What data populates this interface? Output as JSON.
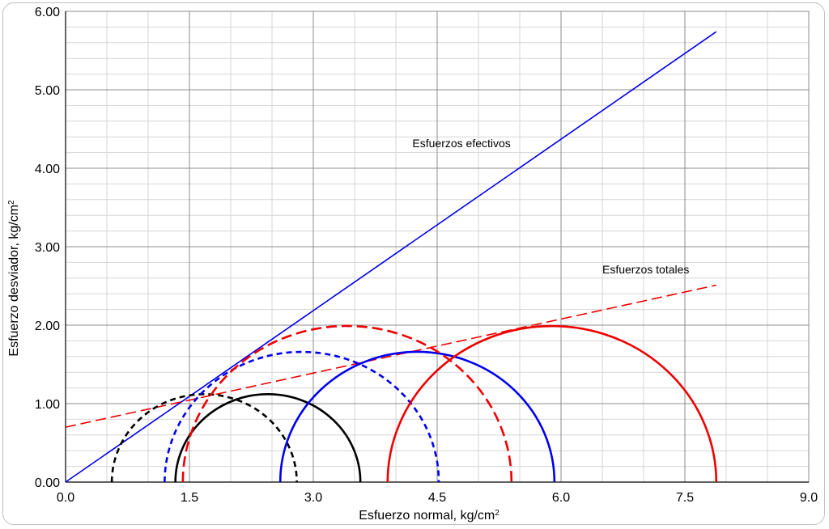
{
  "chart_data": {
    "type": "line",
    "title": "",
    "xlabel": "Esfuerzo normal, kg/cm",
    "xlabel_sup": "2",
    "ylabel": "Esfuerzo desviador, kg/cm",
    "ylabel_sup": "2",
    "xlim": [
      0,
      9
    ],
    "ylim": [
      0,
      6
    ],
    "x_ticks": [
      0,
      1.5,
      3,
      4.5,
      6,
      7.5,
      9
    ],
    "x_tick_labels": [
      "0.0",
      "1.5",
      "3.0",
      "4.5",
      "6.0",
      "7.5",
      "9.0"
    ],
    "y_ticks": [
      0,
      1,
      2,
      3,
      4,
      5,
      6
    ],
    "y_tick_labels": [
      "0.00",
      "1.00",
      "2.00",
      "3.00",
      "4.00",
      "5.00",
      "6.00"
    ],
    "x_minor_step": 0.5,
    "y_minor_step": 0.2,
    "grid": true,
    "envelopes": [
      {
        "label": "Esfuerzos efectivos",
        "x": [
          0,
          7.88
        ],
        "y": [
          0,
          5.74
        ],
        "color": "#0000ee",
        "dash": "solid"
      },
      {
        "label": "Esfuerzos totales",
        "x": [
          0,
          7.88
        ],
        "y": [
          0.7,
          2.51
        ],
        "color": "#ee0000",
        "dash": "long-dash"
      }
    ],
    "circles": [
      {
        "center": 2.45,
        "radius": 1.12,
        "color": "#000000",
        "dash": "solid"
      },
      {
        "center": 1.68,
        "radius": 1.12,
        "color": "#000000",
        "dash": "dash"
      },
      {
        "center": 4.26,
        "radius": 1.66,
        "color": "#0000ee",
        "dash": "solid"
      },
      {
        "center": 2.86,
        "radius": 1.66,
        "color": "#0000ee",
        "dash": "dash"
      },
      {
        "center": 5.89,
        "radius": 1.99,
        "color": "#ee0000",
        "dash": "solid"
      },
      {
        "center": 3.41,
        "radius": 1.99,
        "color": "#ee0000",
        "dash": "long-dash"
      }
    ],
    "annotations": [
      {
        "text": "Esfuerzos efectivos",
        "x": 4.2,
        "y": 4.27
      },
      {
        "text": "Esfuerzos totales",
        "x": 6.5,
        "y": 2.66
      }
    ]
  }
}
